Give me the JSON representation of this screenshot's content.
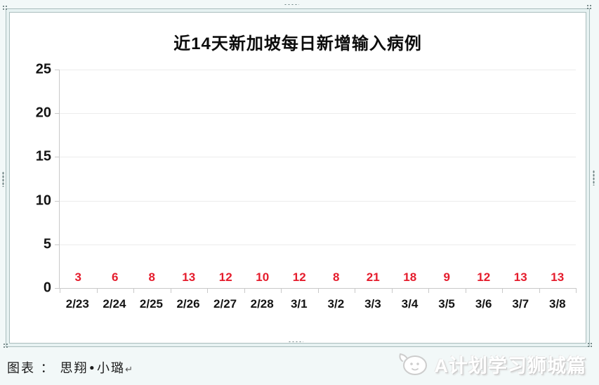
{
  "page": {
    "caption": "图表 ： 思翔•小璐",
    "caption_return_mark": "↵",
    "watermark": "A计划学习狮城篇"
  },
  "chart_data": {
    "type": "bar",
    "title": "近14天新加坡每日新增输入病例",
    "categories": [
      "2/23",
      "2/24",
      "2/25",
      "2/26",
      "2/27",
      "2/28",
      "3/1",
      "3/2",
      "3/3",
      "3/4",
      "3/5",
      "3/6",
      "3/7",
      "3/8"
    ],
    "values": [
      3,
      6,
      8,
      13,
      12,
      10,
      12,
      8,
      21,
      18,
      9,
      12,
      13,
      13
    ],
    "xlabel": "",
    "ylabel": "",
    "ylim": [
      0,
      25
    ],
    "yticks": [
      0,
      5,
      10,
      15,
      20,
      25
    ],
    "grid": true,
    "legend": "none",
    "bar_color": "#FFC000",
    "label_color": "#E51C2C",
    "axis_color": "#c9c9c9"
  }
}
